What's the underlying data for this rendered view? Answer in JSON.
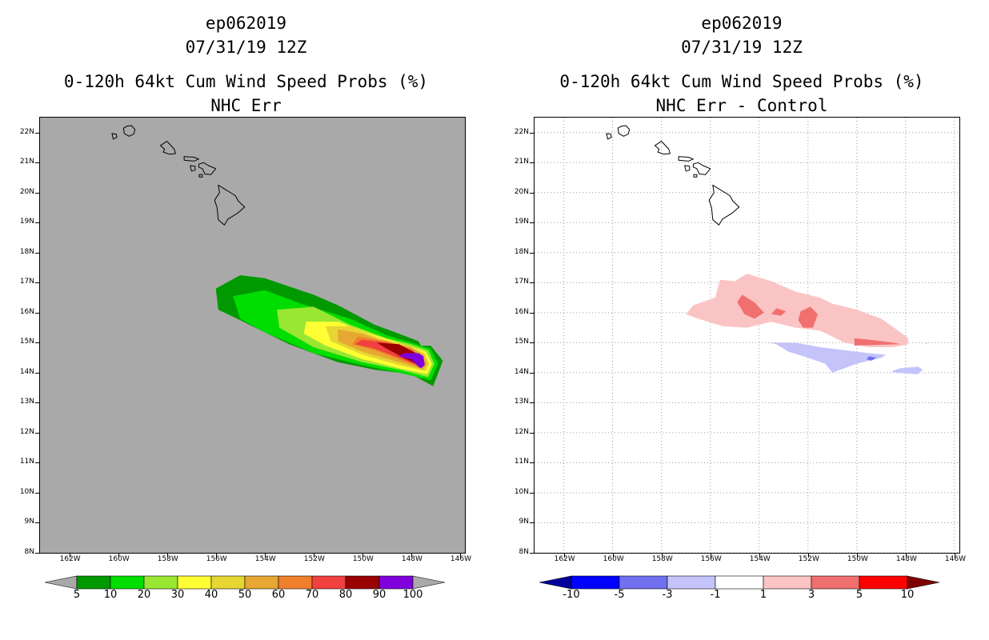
{
  "left_panel": {
    "title_lines": [
      "ep062019",
      "07/31/19 12Z",
      "0-120h 64kt Cum Wind Speed Probs (%)",
      "NHC Err"
    ],
    "background_color": "#a9a9a9",
    "grid": false,
    "colorbar": {
      "colors": [
        "#009900",
        "#00dd00",
        "#99e633",
        "#ffff33",
        "#e6d633",
        "#e6a833",
        "#f07f2c",
        "#f04040",
        "#990000",
        "#8000dd"
      ],
      "labels": [
        "5",
        "10",
        "20",
        "30",
        "40",
        "50",
        "60",
        "70",
        "80",
        "90",
        "100"
      ],
      "end_color": "#a9a9a9"
    }
  },
  "right_panel": {
    "title_lines": [
      "ep062019",
      "07/31/19 12Z",
      "0-120h 64kt Cum Wind Speed Probs (%)",
      "NHC Err - Control"
    ],
    "background_color": "#ffffff",
    "grid": true,
    "colorbar": {
      "colors": [
        "#0000ff",
        "#7070f0",
        "#c4c4fb",
        "#ffffff",
        "#fbc4c4",
        "#f07070",
        "#ff0000"
      ],
      "labels": [
        "-10",
        "-5",
        "-3",
        "-1",
        "1",
        "3",
        "5",
        "10"
      ],
      "low_end_color": "#000099",
      "high_end_color": "#800000"
    }
  },
  "axes": {
    "x_labels": [
      "162W",
      "160W",
      "158W",
      "156W",
      "154W",
      "152W",
      "150W",
      "148W",
      "146W"
    ],
    "y_labels": [
      "22N",
      "21N",
      "20N",
      "19N",
      "18N",
      "17N",
      "16N",
      "15N",
      "14N",
      "13N",
      "12N",
      "11N",
      "10N",
      "9N",
      "8N"
    ]
  },
  "map_data": {
    "lon_range": [
      -163.2,
      -145.8
    ],
    "lat_range": [
      8.0,
      22.5
    ],
    "islands": [
      {
        "name": "Kauai",
        "lonlat": [
          [
            -159.62,
            22.22
          ],
          [
            -159.45,
            22.23
          ],
          [
            -159.31,
            22.1
          ],
          [
            -159.36,
            21.95
          ],
          [
            -159.55,
            21.88
          ],
          [
            -159.75,
            21.97
          ],
          [
            -159.78,
            22.15
          ]
        ]
      },
      {
        "name": "Niihau",
        "lonlat": [
          [
            -160.25,
            21.97
          ],
          [
            -160.08,
            21.95
          ],
          [
            -160.05,
            21.85
          ],
          [
            -160.2,
            21.78
          ]
        ]
      },
      {
        "name": "Oahu",
        "lonlat": [
          [
            -158.27,
            21.57
          ],
          [
            -158.0,
            21.71
          ],
          [
            -157.7,
            21.45
          ],
          [
            -157.65,
            21.3
          ],
          [
            -157.9,
            21.28
          ],
          [
            -158.15,
            21.35
          ],
          [
            -158.1,
            21.45
          ]
        ]
      },
      {
        "name": "Molokai",
        "lonlat": [
          [
            -157.3,
            21.2
          ],
          [
            -156.9,
            21.18
          ],
          [
            -156.7,
            21.12
          ],
          [
            -156.9,
            21.05
          ],
          [
            -157.3,
            21.08
          ]
        ]
      },
      {
        "name": "Maui",
        "lonlat": [
          [
            -156.7,
            20.95
          ],
          [
            -156.5,
            21.0
          ],
          [
            -156.3,
            20.9
          ],
          [
            -156.0,
            20.8
          ],
          [
            -156.2,
            20.6
          ],
          [
            -156.45,
            20.62
          ],
          [
            -156.55,
            20.8
          ],
          [
            -156.7,
            20.85
          ]
        ]
      },
      {
        "name": "Lanai",
        "lonlat": [
          [
            -157.05,
            20.9
          ],
          [
            -156.85,
            20.88
          ],
          [
            -156.85,
            20.75
          ],
          [
            -157.0,
            20.72
          ]
        ]
      },
      {
        "name": "Kahoolawe",
        "lonlat": [
          [
            -156.68,
            20.6
          ],
          [
            -156.55,
            20.6
          ],
          [
            -156.55,
            20.52
          ],
          [
            -156.68,
            20.52
          ]
        ]
      },
      {
        "name": "Hawaii",
        "lonlat": [
          [
            -155.9,
            20.25
          ],
          [
            -155.7,
            20.15
          ],
          [
            -155.2,
            19.9
          ],
          [
            -155.08,
            19.72
          ],
          [
            -154.82,
            19.52
          ],
          [
            -155.1,
            19.32
          ],
          [
            -155.5,
            19.12
          ],
          [
            -155.65,
            18.92
          ],
          [
            -155.9,
            19.1
          ],
          [
            -155.95,
            19.5
          ],
          [
            -156.05,
            19.75
          ],
          [
            -155.85,
            20.0
          ]
        ]
      }
    ]
  },
  "left_contours": [
    {
      "min_prob": 5,
      "color": "#009900",
      "lonlat": [
        [
          -156.0,
          16.8
        ],
        [
          -155.0,
          17.25
        ],
        [
          -154.0,
          17.15
        ],
        [
          -152.0,
          16.6
        ],
        [
          -151.0,
          16.25
        ],
        [
          -149.5,
          15.6
        ],
        [
          -148.5,
          15.3
        ],
        [
          -147.7,
          15.05
        ],
        [
          -147.6,
          14.9
        ],
        [
          -147.2,
          14.9
        ],
        [
          -146.7,
          14.4
        ],
        [
          -147.1,
          13.55
        ],
        [
          -148.0,
          13.95
        ],
        [
          -149.5,
          14.1
        ],
        [
          -151.0,
          14.35
        ],
        [
          -153.0,
          14.95
        ],
        [
          -155.0,
          15.75
        ],
        [
          -155.9,
          16.1
        ]
      ]
    },
    {
      "min_prob": 10,
      "color": "#00dd00",
      "lonlat": [
        [
          -155.3,
          16.55
        ],
        [
          -154.0,
          16.75
        ],
        [
          -152.5,
          16.3
        ],
        [
          -150.5,
          15.8
        ],
        [
          -149.0,
          15.25
        ],
        [
          -148.0,
          15.0
        ],
        [
          -147.2,
          14.8
        ],
        [
          -146.9,
          14.3
        ],
        [
          -147.2,
          13.75
        ],
        [
          -148.5,
          14.0
        ],
        [
          -150.0,
          14.25
        ],
        [
          -152.0,
          14.65
        ],
        [
          -154.0,
          15.35
        ],
        [
          -155.0,
          15.8
        ]
      ]
    },
    {
      "min_prob": 20,
      "color": "#99e633",
      "lonlat": [
        [
          -153.5,
          16.1
        ],
        [
          -152.0,
          16.2
        ],
        [
          -150.5,
          15.6
        ],
        [
          -149.0,
          15.15
        ],
        [
          -148.0,
          14.95
        ],
        [
          -147.3,
          14.75
        ],
        [
          -147.05,
          14.3
        ],
        [
          -147.3,
          13.85
        ],
        [
          -148.5,
          14.1
        ],
        [
          -150.0,
          14.35
        ],
        [
          -152.0,
          14.85
        ],
        [
          -153.4,
          15.5
        ]
      ]
    },
    {
      "min_prob": 30,
      "color": "#ffff33",
      "lonlat": [
        [
          -152.3,
          15.7
        ],
        [
          -151.0,
          15.7
        ],
        [
          -149.5,
          15.25
        ],
        [
          -148.5,
          15.0
        ],
        [
          -147.4,
          14.7
        ],
        [
          -147.15,
          14.3
        ],
        [
          -147.35,
          13.95
        ],
        [
          -148.5,
          14.15
        ],
        [
          -150.0,
          14.45
        ],
        [
          -151.5,
          14.9
        ],
        [
          -152.4,
          15.3
        ]
      ]
    },
    {
      "min_prob": 40,
      "color": "#e6d633",
      "lonlat": [
        [
          -151.5,
          15.55
        ],
        [
          -150.5,
          15.55
        ],
        [
          -149.3,
          15.15
        ],
        [
          -148.3,
          14.95
        ],
        [
          -147.45,
          14.65
        ],
        [
          -147.25,
          14.3
        ],
        [
          -147.4,
          14.05
        ],
        [
          -148.5,
          14.25
        ],
        [
          -150.0,
          14.6
        ],
        [
          -151.3,
          15.05
        ]
      ]
    },
    {
      "min_prob": 50,
      "color": "#e6a833",
      "lonlat": [
        [
          -151.0,
          15.45
        ],
        [
          -150.0,
          15.3
        ],
        [
          -149.0,
          15.0
        ],
        [
          -148.0,
          14.85
        ],
        [
          -147.5,
          14.6
        ],
        [
          -147.35,
          14.3
        ],
        [
          -147.5,
          14.1
        ],
        [
          -148.5,
          14.35
        ],
        [
          -150.0,
          14.7
        ],
        [
          -151.0,
          15.05
        ]
      ]
    },
    {
      "min_prob": 60,
      "color": "#f07f2c",
      "lonlat": [
        [
          -150.2,
          15.2
        ],
        [
          -149.0,
          15.05
        ],
        [
          -148.0,
          14.8
        ],
        [
          -147.55,
          14.55
        ],
        [
          -147.4,
          14.3
        ],
        [
          -147.55,
          14.15
        ],
        [
          -148.5,
          14.45
        ],
        [
          -149.5,
          14.75
        ],
        [
          -150.4,
          14.95
        ]
      ]
    },
    {
      "min_prob": 70,
      "color": "#f04040",
      "lonlat": [
        [
          -150.0,
          15.1
        ],
        [
          -149.0,
          15.0
        ],
        [
          -148.0,
          14.75
        ],
        [
          -147.6,
          14.5
        ],
        [
          -147.45,
          14.3
        ],
        [
          -147.6,
          14.2
        ],
        [
          -148.5,
          14.5
        ],
        [
          -149.5,
          14.8
        ],
        [
          -150.3,
          14.95
        ]
      ]
    },
    {
      "min_prob": 80,
      "color": "#990000",
      "lonlat": [
        [
          -149.4,
          15.0
        ],
        [
          -148.5,
          14.95
        ],
        [
          -147.8,
          14.65
        ],
        [
          -147.6,
          14.55
        ],
        [
          -147.5,
          14.3
        ],
        [
          -147.65,
          14.25
        ],
        [
          -148.2,
          14.45
        ],
        [
          -149.0,
          14.8
        ]
      ]
    },
    {
      "min_prob": 90,
      "color": "#8000dd",
      "lonlat": [
        [
          -148.3,
          14.65
        ],
        [
          -147.7,
          14.65
        ],
        [
          -147.5,
          14.55
        ],
        [
          -147.45,
          14.25
        ],
        [
          -147.6,
          14.15
        ],
        [
          -147.7,
          14.2
        ],
        [
          -148.0,
          14.45
        ],
        [
          -148.5,
          14.55
        ]
      ]
    }
  ],
  "right_contours": [
    {
      "range": "1 to 3",
      "color": "#fbc4c4",
      "lonlat": [
        [
          -155.6,
          17.1
        ],
        [
          -155.0,
          17.05
        ],
        [
          -154.5,
          17.3
        ],
        [
          -153.5,
          17.05
        ],
        [
          -152.5,
          16.7
        ],
        [
          -151.5,
          16.5
        ],
        [
          -151.0,
          16.3
        ],
        [
          -150.0,
          16.1
        ],
        [
          -149.0,
          15.8
        ],
        [
          -148.3,
          15.4
        ],
        [
          -147.9,
          15.15
        ],
        [
          -147.9,
          14.95
        ],
        [
          -148.5,
          14.85
        ],
        [
          -149.5,
          14.85
        ],
        [
          -150.5,
          15.0
        ],
        [
          -151.5,
          15.4
        ],
        [
          -152.5,
          15.5
        ],
        [
          -153.5,
          15.7
        ],
        [
          -154.5,
          15.5
        ],
        [
          -155.5,
          15.55
        ],
        [
          -156.5,
          15.8
        ],
        [
          -157.0,
          15.95
        ],
        [
          -156.7,
          16.25
        ],
        [
          -155.8,
          16.5
        ]
      ]
    },
    {
      "range": "3 to 5",
      "color": "#f07070",
      "lonlat": [
        [
          -154.7,
          16.6
        ],
        [
          -154.2,
          16.35
        ],
        [
          -153.8,
          16.0
        ],
        [
          -154.2,
          15.8
        ],
        [
          -154.6,
          15.95
        ],
        [
          -154.9,
          16.35
        ]
      ]
    },
    {
      "range": "3 to 5",
      "color": "#f07070",
      "lonlat": [
        [
          -153.3,
          16.15
        ],
        [
          -152.9,
          16.05
        ],
        [
          -153.1,
          15.9
        ],
        [
          -153.5,
          15.95
        ]
      ]
    },
    {
      "range": "3 to 5",
      "color": "#f07070",
      "lonlat": [
        [
          -152.3,
          16.05
        ],
        [
          -151.9,
          16.2
        ],
        [
          -151.6,
          15.95
        ],
        [
          -151.8,
          15.5
        ],
        [
          -152.2,
          15.5
        ],
        [
          -152.4,
          15.75
        ]
      ]
    },
    {
      "range": "3 to 5",
      "color": "#f07070",
      "lonlat": [
        [
          -150.1,
          15.15
        ],
        [
          -149.5,
          15.1
        ],
        [
          -148.5,
          15.0
        ],
        [
          -148.2,
          14.95
        ],
        [
          -149.5,
          14.92
        ],
        [
          -150.1,
          14.9
        ]
      ]
    },
    {
      "range": "-1 to -3",
      "color": "#c4c4fb",
      "lonlat": [
        [
          -153.6,
          15.0
        ],
        [
          -152.5,
          15.0
        ],
        [
          -151.5,
          14.85
        ],
        [
          -150.5,
          14.75
        ],
        [
          -149.5,
          14.65
        ],
        [
          -148.8,
          14.6
        ],
        [
          -149.0,
          14.5
        ],
        [
          -150.0,
          14.3
        ],
        [
          -151.0,
          14.0
        ],
        [
          -151.3,
          14.3
        ],
        [
          -152.0,
          14.5
        ],
        [
          -152.8,
          14.7
        ],
        [
          -153.3,
          14.95
        ]
      ]
    },
    {
      "range": "-1 to -3",
      "color": "#c4c4fb",
      "lonlat": [
        [
          -148.2,
          14.15
        ],
        [
          -147.5,
          14.2
        ],
        [
          -147.3,
          14.1
        ],
        [
          -147.5,
          13.95
        ],
        [
          -148.4,
          14.0
        ],
        [
          -148.6,
          14.05
        ]
      ]
    },
    {
      "range": "-3 to -5",
      "color": "#7070f0",
      "lonlat": [
        [
          -149.5,
          14.55
        ],
        [
          -149.2,
          14.5
        ],
        [
          -149.4,
          14.4
        ],
        [
          -149.6,
          14.45
        ]
      ]
    },
    {
      "range": "-1 to -3",
      "color": "#c4c4fb",
      "lonlat": [
        [
          -147.2,
          15.0
        ],
        [
          -147.1,
          15.0
        ],
        [
          -147.15,
          14.95
        ]
      ]
    }
  ]
}
